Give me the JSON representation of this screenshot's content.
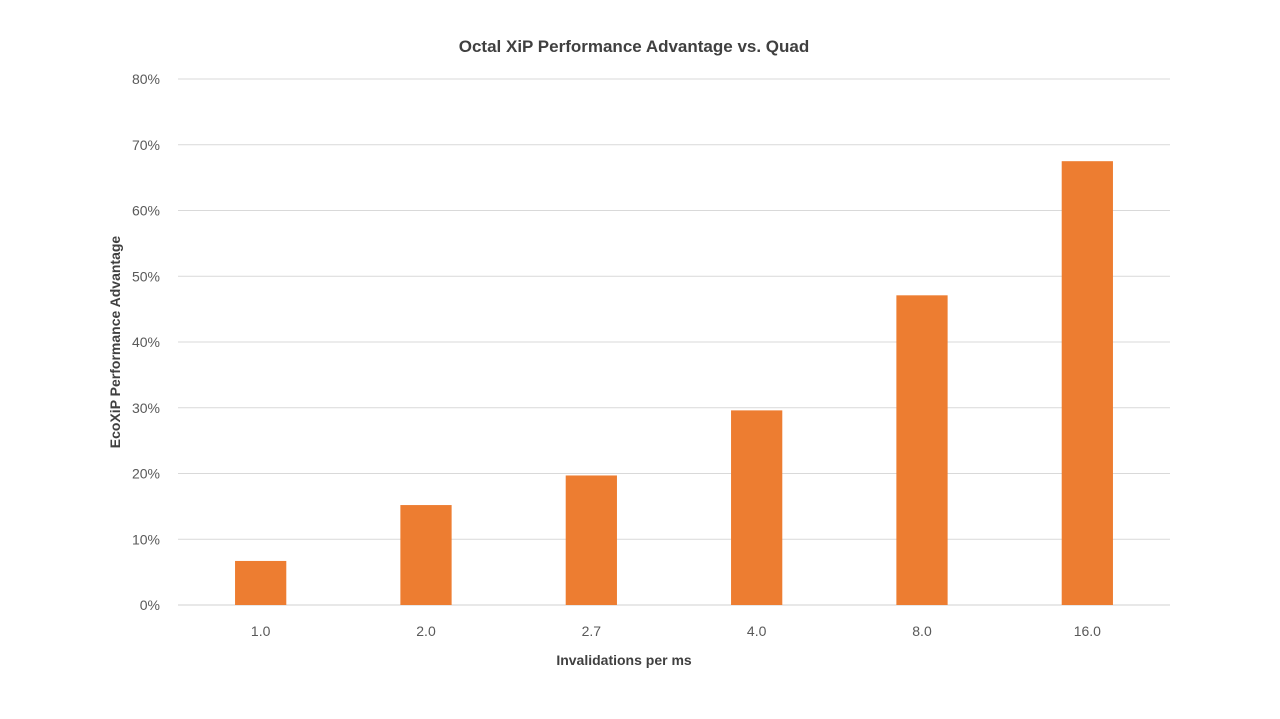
{
  "chart_data": {
    "type": "bar",
    "title": "Octal XiP Performance Advantage vs. Quad",
    "xlabel": "Invalidations per ms",
    "ylabel": "EcoXiP Performance Advantage",
    "categories": [
      "1.0",
      "2.0",
      "2.7",
      "4.0",
      "8.0",
      "16.0"
    ],
    "values": [
      6.7,
      15.2,
      19.7,
      29.6,
      47.1,
      67.5
    ],
    "ylim": [
      0,
      80
    ],
    "yticks": [
      0,
      10,
      20,
      30,
      40,
      50,
      60,
      70,
      80
    ],
    "ytick_labels": [
      "0%",
      "10%",
      "20%",
      "30%",
      "40%",
      "50%",
      "60%",
      "70%",
      "80%"
    ],
    "value_unit": "%",
    "bar_color": "#ed7d31",
    "grid": true,
    "legend": "none"
  }
}
